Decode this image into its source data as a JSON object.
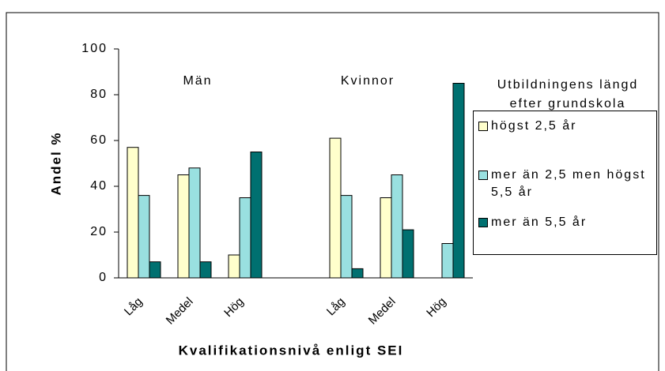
{
  "chart_data": {
    "type": "bar",
    "ylabel": "Andel %",
    "xlabel": "Kvalifikationsnivå enligt SEI",
    "annotations": [
      "Män",
      "Kvinnor"
    ],
    "legend_title": "Utbildningens längd efter grundskola",
    "categories": [
      "Låg",
      "Medel",
      "Hög",
      null,
      "Låg",
      "Medel",
      "Hög"
    ],
    "series": [
      {
        "name": "högst 2,5 år",
        "color": "#ffffcc",
        "values": [
          57,
          45,
          10,
          null,
          61,
          35,
          null
        ]
      },
      {
        "name": "mer än 2,5 men högst 5,5 år",
        "color": "#99e0e0",
        "values": [
          36,
          48,
          35,
          null,
          36,
          45,
          15
        ]
      },
      {
        "name": "mer än 5,5 år",
        "color": "#007070",
        "values": [
          7,
          7,
          55,
          null,
          4,
          21,
          85
        ]
      }
    ],
    "ylim": [
      0,
      100
    ],
    "yticks": [
      0,
      20,
      40,
      60,
      80,
      100
    ],
    "grid": false,
    "legend": "right"
  }
}
